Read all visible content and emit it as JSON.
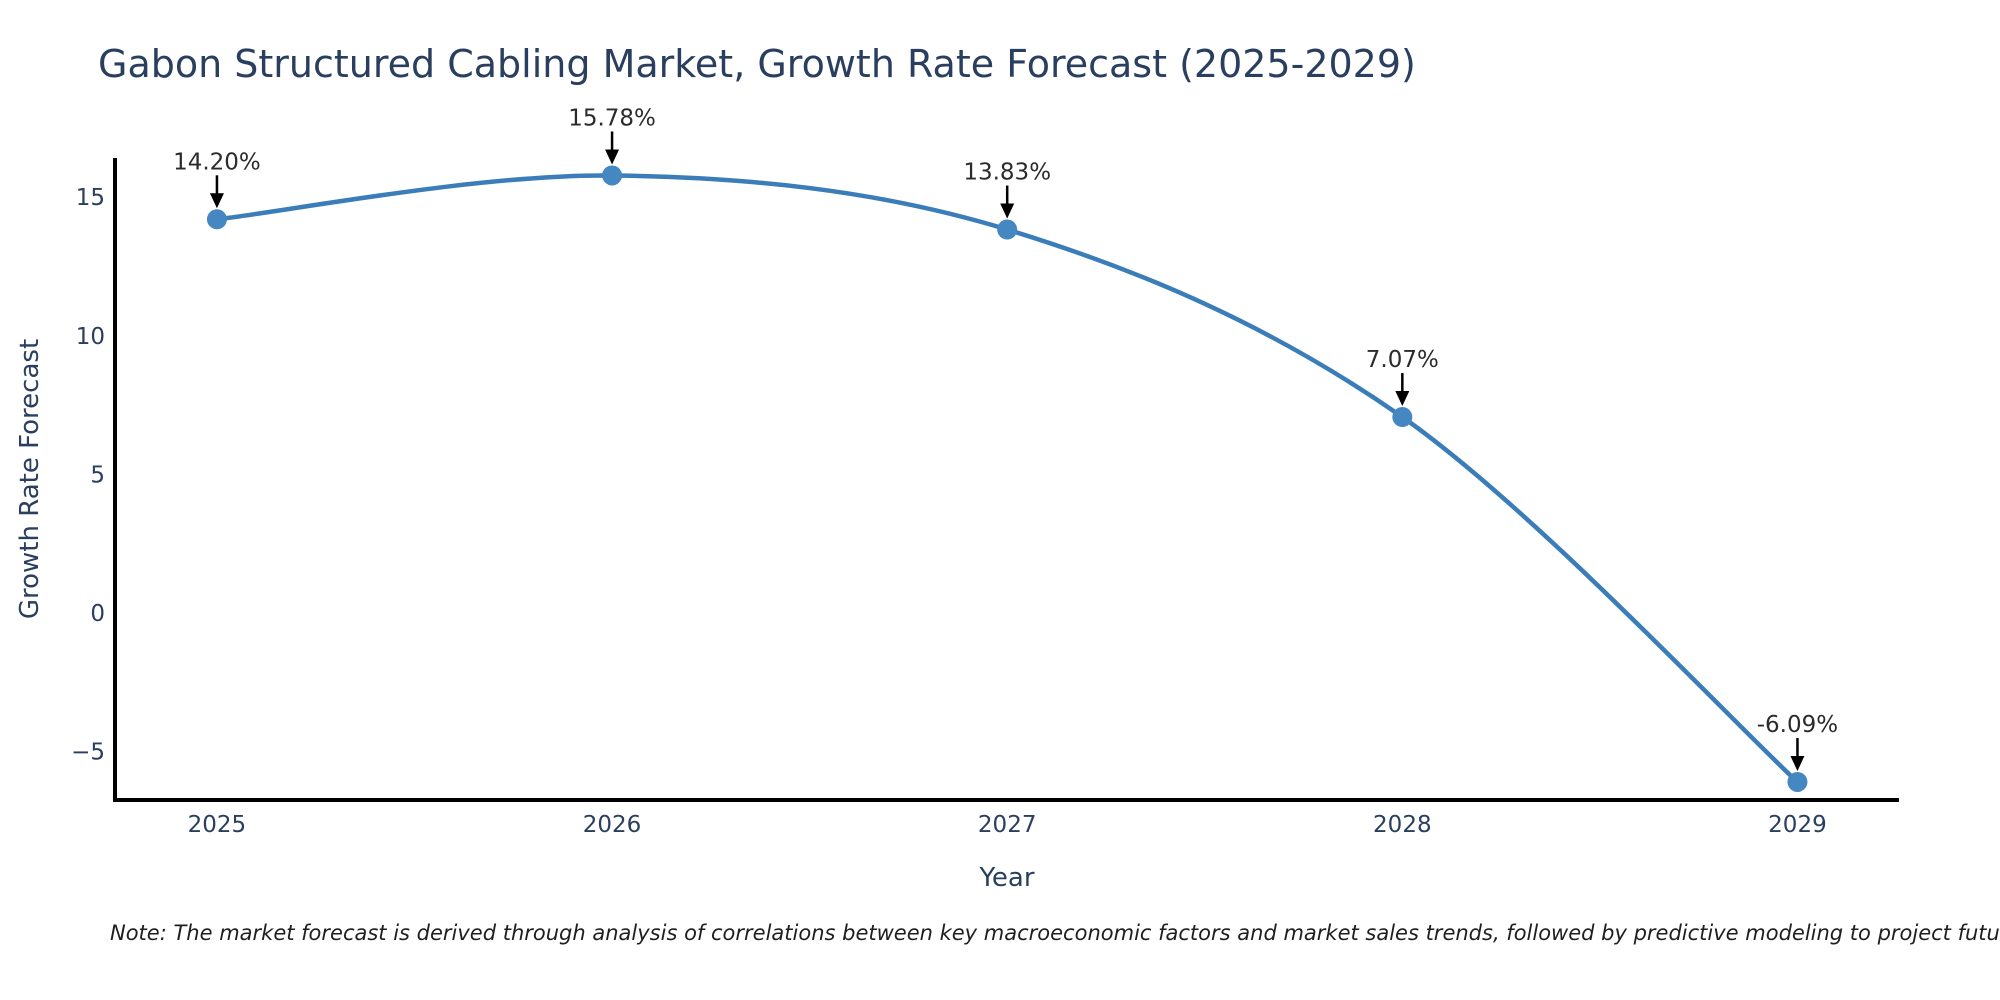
{
  "title": "Gabon Structured Cabling Market, Growth Rate Forecast (2025-2029)",
  "note": "Note: The market forecast is derived through analysis of correlations between key macroeconomic factors and market sales trends, followed by predictive modeling to project future sales",
  "chart_data": {
    "type": "line",
    "title": "Gabon Structured Cabling Market, Growth Rate Forecast (2025-2029)",
    "xlabel": "Year",
    "ylabel": "Growth Rate Forecast",
    "x": [
      2025,
      2026,
      2027,
      2028,
      2029
    ],
    "y": [
      14.2,
      15.78,
      13.83,
      7.07,
      -6.09
    ],
    "point_labels": [
      "14.20%",
      "15.78%",
      "13.83%",
      "7.07%",
      "-6.09%"
    ],
    "xticks": {
      "values": [
        2025,
        2026,
        2027,
        2028,
        2029
      ],
      "labels": [
        "2025",
        "2026",
        "2027",
        "2028",
        "2029"
      ]
    },
    "yticks": {
      "values": [
        15,
        10,
        5,
        0,
        -5
      ],
      "labels": [
        "15",
        "10",
        "5",
        "0",
        "−5"
      ]
    },
    "xlim": [
      2024.742,
      2029.257
    ],
    "ylim": [
      -6.74,
      16.41
    ],
    "line_shape": "spline",
    "grid": false,
    "legend": false,
    "annotations_have_arrows": true,
    "colors": {
      "line": "#3b7db8",
      "marker": "#4587c0",
      "axis": "#000000",
      "tick_text": "#2a3f5f",
      "axis_title_text": "#2a3f5f",
      "title_text": "#2a3f5f",
      "annotation_text": "#2b2b2b",
      "arrow": "#000000",
      "background": "#ffffff"
    }
  }
}
